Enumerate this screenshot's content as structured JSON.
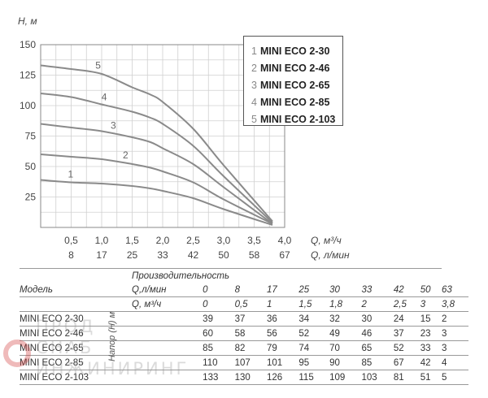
{
  "chart_data": {
    "type": "line",
    "ylabel": "H, м",
    "xlabel_primary": "Q, м³/ч",
    "xlabel_secondary": "Q, л/мин",
    "ylim": [
      0,
      150
    ],
    "xlim": [
      0,
      4.0
    ],
    "y_ticks": [
      "25",
      "50",
      "75",
      "100",
      "125",
      "150"
    ],
    "x_ticks_primary": [
      "0,5",
      "1,0",
      "1,5",
      "2,0",
      "2,5",
      "3,0",
      "3,5",
      "4,0"
    ],
    "x_ticks_secondary": [
      "8",
      "17",
      "25",
      "33",
      "42",
      "50",
      "58",
      "67"
    ],
    "grid": true,
    "legend": [
      {
        "num": "1",
        "name": "MINI ECO 2-30"
      },
      {
        "num": "2",
        "name": "MINI ECO 2-46"
      },
      {
        "num": "3",
        "name": "MINI ECO 2-65"
      },
      {
        "num": "4",
        "name": "MINI ECO 2-85"
      },
      {
        "num": "5",
        "name": "MINI ECO 2-103"
      }
    ],
    "x": [
      0,
      0.5,
      1.0,
      1.5,
      1.8,
      2.0,
      2.5,
      3.0,
      3.8
    ],
    "series": [
      {
        "label": "1",
        "values": [
          39,
          37,
          36,
          34,
          32,
          30,
          24,
          15,
          2
        ]
      },
      {
        "label": "2",
        "values": [
          60,
          58,
          56,
          52,
          49,
          46,
          37,
          23,
          3
        ]
      },
      {
        "label": "3",
        "values": [
          85,
          82,
          79,
          74,
          70,
          65,
          52,
          33,
          3
        ]
      },
      {
        "label": "4",
        "values": [
          110,
          107,
          101,
          95,
          90,
          85,
          67,
          42,
          4
        ]
      },
      {
        "label": "5",
        "values": [
          133,
          130,
          126,
          115,
          109,
          103,
          81,
          51,
          5
        ]
      }
    ],
    "line_color": "#8a8a8a"
  },
  "table": {
    "header_model": "Модель",
    "header_perf": "Производительность",
    "row_lmin_label": "Q,л/мин",
    "row_m3h_label": "Q, м³/ч",
    "lmin_values": [
      "0",
      "8",
      "17",
      "25",
      "30",
      "33",
      "42",
      "50",
      "63"
    ],
    "m3h_values": [
      "0",
      "0,5",
      "1",
      "1,5",
      "1,8",
      "2",
      "2,5",
      "3",
      "3,8"
    ],
    "head_label": "Напор (H) м",
    "rows": [
      {
        "model": "MINI ECO 2-30",
        "values": [
          "39",
          "37",
          "36",
          "34",
          "32",
          "30",
          "24",
          "15",
          "2"
        ]
      },
      {
        "model": "MINI ECO 2-46",
        "values": [
          "60",
          "58",
          "56",
          "52",
          "49",
          "46",
          "37",
          "23",
          "3"
        ]
      },
      {
        "model": "MINI ECO 2-65",
        "values": [
          "85",
          "82",
          "79",
          "74",
          "70",
          "65",
          "52",
          "33",
          "3"
        ]
      },
      {
        "model": "MINI ECO 2-85",
        "values": [
          "110",
          "107",
          "101",
          "95",
          "90",
          "85",
          "67",
          "42",
          "4"
        ]
      },
      {
        "model": "MINI ECO 2-103",
        "values": [
          "133",
          "130",
          "126",
          "115",
          "109",
          "103",
          "81",
          "51",
          "5"
        ]
      }
    ]
  },
  "watermark": {
    "line1": "ПРОД",
    "line2": "СНАБ",
    "line3": "ИНЖИНИРИНГ"
  }
}
